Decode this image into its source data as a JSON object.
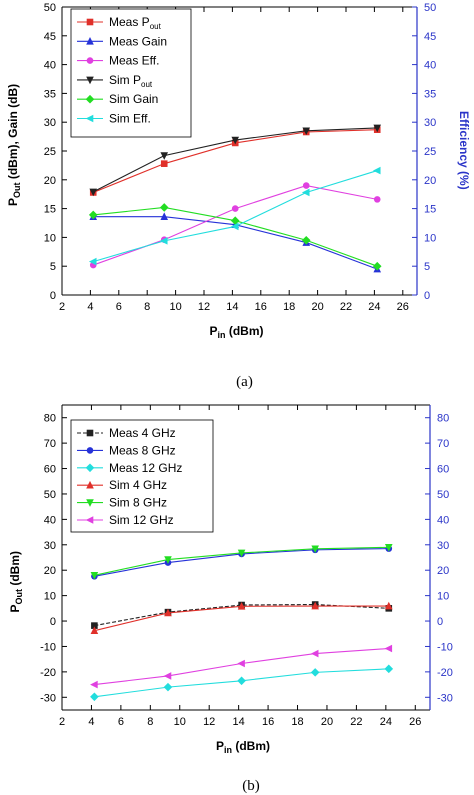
{
  "chart_data": [
    {
      "type": "line",
      "x": [
        4.2,
        9.2,
        14.2,
        19.2,
        24.2
      ],
      "xlabel": "Pin (dBm)",
      "xlabel_main": "P",
      "xlabel_sub": "in",
      "xlabel_rest": " (dBm)",
      "ylabel": "Pout (dBm), Gain (dB)",
      "ylabel_main": "P",
      "ylabel_sub": "Out",
      "ylabel_rest": " (dBm), Gain (dB)",
      "y2label": "Efficiency (%)",
      "xlim": [
        2,
        27
      ],
      "ylim": [
        0,
        50
      ],
      "y2lim": [
        0,
        50
      ],
      "xticks": [
        2,
        4,
        6,
        8,
        10,
        12,
        14,
        16,
        18,
        20,
        22,
        24,
        26
      ],
      "yticks": [
        0,
        5,
        10,
        15,
        20,
        25,
        30,
        35,
        40,
        45,
        50
      ],
      "y2ticks": [
        0,
        5,
        10,
        15,
        20,
        25,
        30,
        35,
        40,
        45,
        50
      ],
      "legend_position": "top-left",
      "caption": "(a)",
      "series": [
        {
          "name": "Meas Pout",
          "name_main": "Meas P",
          "name_sub": "out",
          "color": "#e0302a",
          "marker": "square",
          "values": [
            17.8,
            22.8,
            26.4,
            28.3,
            28.7
          ]
        },
        {
          "name": "Meas Gain",
          "color": "#2632d8",
          "marker": "triangle-up",
          "values": [
            13.6,
            13.6,
            12.2,
            9.1,
            4.5
          ]
        },
        {
          "name": "Meas Eff.",
          "color": "#e040e0",
          "marker": "circle",
          "values": [
            5.2,
            9.6,
            15.0,
            19.0,
            16.6
          ]
        },
        {
          "name": "Sim Pout",
          "name_main": "Sim P",
          "name_sub": "out",
          "color": "#222222",
          "marker": "triangle-down",
          "values": [
            17.9,
            24.2,
            26.9,
            28.5,
            29.0
          ]
        },
        {
          "name": "Sim Gain",
          "color": "#22dd22",
          "marker": "diamond",
          "values": [
            13.9,
            15.2,
            12.9,
            9.5,
            5.0
          ]
        },
        {
          "name": "Sim Eff.",
          "color": "#22dddd",
          "marker": "triangle-left",
          "values": [
            5.8,
            9.4,
            11.9,
            17.8,
            21.6
          ]
        }
      ]
    },
    {
      "type": "line",
      "x": [
        4.2,
        9.2,
        14.2,
        19.2,
        24.2
      ],
      "xlabel": "Pin (dBm)",
      "xlabel_main": "P",
      "xlabel_sub": "in",
      "xlabel_rest": " (dBm)",
      "ylabel": "POut (dBm)",
      "ylabel_main": "P",
      "ylabel_sub": "Out",
      "ylabel_rest": " (dBm)",
      "y2label": "",
      "xlim": [
        2,
        27
      ],
      "ylim": [
        -35,
        85
      ],
      "y2lim": [
        -35,
        85
      ],
      "xticks": [
        2,
        4,
        6,
        8,
        10,
        12,
        14,
        16,
        18,
        20,
        22,
        24,
        26
      ],
      "yticks": [
        -30,
        -20,
        -10,
        0,
        10,
        20,
        30,
        40,
        50,
        60,
        70,
        80
      ],
      "y2ticks": [
        -30,
        -20,
        -10,
        0,
        10,
        20,
        30,
        40,
        50,
        60,
        70,
        80
      ],
      "legend_position": "top-left",
      "caption": "(b)",
      "series": [
        {
          "name": "Meas 4 GHz",
          "color": "#222222",
          "marker": "square",
          "dashed": true,
          "values": [
            -1.8,
            3.5,
            6.3,
            6.5,
            5.0
          ]
        },
        {
          "name": "Meas 8 GHz",
          "color": "#2632d8",
          "marker": "circle",
          "values": [
            17.6,
            23.0,
            26.4,
            28.0,
            28.5
          ]
        },
        {
          "name": "Meas 12 GHz",
          "color": "#22dddd",
          "marker": "diamond",
          "values": [
            -29.8,
            -26.0,
            -23.5,
            -20.2,
            -18.8
          ]
        },
        {
          "name": "Sim 4 GHz",
          "color": "#e0302a",
          "marker": "triangle-up",
          "values": [
            -3.8,
            3.2,
            5.8,
            5.9,
            5.9
          ]
        },
        {
          "name": "Sim 8 GHz",
          "color": "#22dd22",
          "marker": "triangle-down",
          "values": [
            18.0,
            24.2,
            26.8,
            28.4,
            29.0
          ]
        },
        {
          "name": "Sim 12 GHz",
          "color": "#e040e0",
          "marker": "triangle-left",
          "values": [
            -25.0,
            -21.6,
            -16.7,
            -12.8,
            -10.8
          ]
        }
      ]
    }
  ]
}
